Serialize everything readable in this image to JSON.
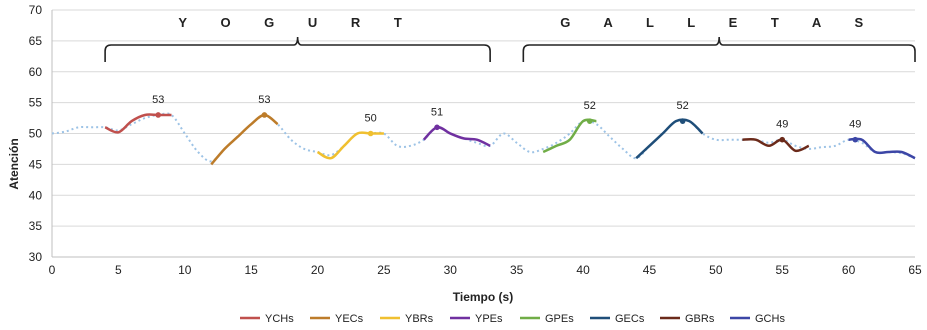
{
  "chart_data": {
    "type": "line",
    "title": "",
    "xlabel": "Tiempo (s)",
    "ylabel": "Atención",
    "xlim": [
      0,
      65
    ],
    "ylim": [
      30,
      70
    ],
    "x_ticks": [
      0,
      5,
      10,
      15,
      20,
      25,
      30,
      35,
      40,
      45,
      50,
      55,
      60,
      65
    ],
    "y_ticks": [
      30,
      35,
      40,
      45,
      50,
      55,
      60,
      65,
      70
    ],
    "grid": "horizontal",
    "legend_position": "bottom",
    "groups": [
      {
        "label": "Y O G U R T",
        "x_range": [
          4,
          33
        ]
      },
      {
        "label": "G A L L E T A S",
        "x_range": [
          35.5,
          65
        ]
      }
    ],
    "baseline": {
      "style": "dotted",
      "color": "#9dc3e6",
      "x": [
        0,
        1,
        2,
        3,
        4,
        5,
        6,
        7,
        8,
        9,
        10,
        11,
        12,
        13,
        14,
        15,
        16,
        17,
        18,
        19,
        20,
        21,
        22,
        23,
        24,
        25,
        26,
        27,
        28,
        29,
        30,
        31,
        32,
        33,
        34,
        35,
        36,
        37,
        38,
        39,
        40,
        41,
        42,
        43,
        44,
        45,
        46,
        47,
        48,
        49,
        50,
        51,
        52,
        53,
        54,
        55,
        56,
        57,
        58,
        59,
        60,
        61,
        62,
        63,
        64,
        65
      ],
      "y": [
        50,
        50.3,
        51,
        51,
        51,
        50.5,
        51.5,
        52.5,
        53,
        53,
        50,
        47,
        45.5,
        47.5,
        49.5,
        51.5,
        53,
        51.5,
        49,
        47.5,
        47,
        46.5,
        48,
        50,
        50,
        50,
        48,
        48,
        49,
        51,
        50,
        49.2,
        48.5,
        48,
        50,
        48.5,
        47,
        47.5,
        48.5,
        50,
        52,
        51.5,
        49.5,
        47.5,
        46,
        48,
        50,
        52,
        52,
        50,
        49,
        49,
        49,
        49,
        48.5,
        49,
        48,
        47.5,
        47.8,
        48,
        49,
        48.5,
        47,
        47,
        46.8,
        46
      ]
    },
    "series": [
      {
        "name": "YCHs",
        "color": "#c0504d",
        "x": [
          4,
          5,
          6,
          7,
          8,
          9
        ],
        "y": [
          51,
          50.2,
          52,
          53,
          53,
          53
        ],
        "peak": 53,
        "peak_x": 8
      },
      {
        "name": "YECs",
        "color": "#bd7c2a",
        "x": [
          12,
          13,
          14,
          15,
          16,
          17
        ],
        "y": [
          45,
          47.5,
          49.5,
          51.5,
          53,
          51.5
        ],
        "peak": 53,
        "peak_x": 16
      },
      {
        "name": "YBRs",
        "color": "#f0c030",
        "x": [
          20,
          21,
          22,
          23,
          24,
          25
        ],
        "y": [
          47,
          46,
          48,
          50,
          50,
          50
        ],
        "peak": 50,
        "peak_x": 24
      },
      {
        "name": "YPEs",
        "color": "#7030a0",
        "x": [
          28,
          29,
          30,
          31,
          32,
          33
        ],
        "y": [
          49,
          51,
          50,
          49.2,
          49,
          48
        ],
        "peak": 51,
        "peak_x": 29
      },
      {
        "name": "GPEs",
        "color": "#70ad47",
        "x": [
          37,
          38,
          39,
          40,
          41
        ],
        "y": [
          47,
          48,
          49,
          52,
          52
        ],
        "peak": 52,
        "peak_x": 40.5
      },
      {
        "name": "GECs",
        "color": "#1f4e79",
        "x": [
          44,
          45,
          46,
          47,
          48,
          49
        ],
        "y": [
          46,
          48,
          50,
          52,
          52,
          50
        ],
        "peak": 52,
        "peak_x": 47.5
      },
      {
        "name": "GBRs",
        "color": "#6b2a1a",
        "x": [
          52,
          53,
          54,
          55,
          56,
          57
        ],
        "y": [
          49,
          49,
          48,
          49,
          47.2,
          48
        ],
        "peak": 49,
        "peak_x": 55
      },
      {
        "name": "GCHs",
        "color": "#3c46a6",
        "x": [
          60,
          61,
          62,
          63,
          64,
          65
        ],
        "y": [
          49,
          49,
          47,
          47,
          47,
          46
        ],
        "peak": 49,
        "peak_x": 60.5
      }
    ]
  }
}
